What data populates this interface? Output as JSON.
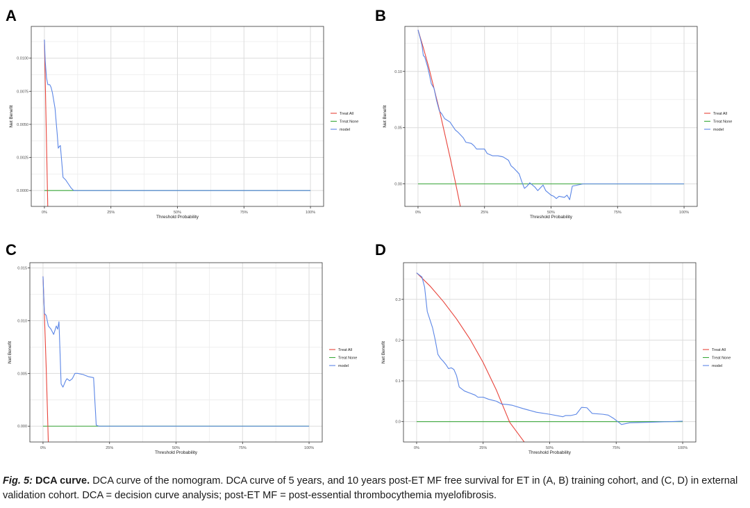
{
  "figure": {
    "panels": [
      {
        "letter": "A",
        "y_ticks": [
          "0.0100",
          "0.0075",
          "0.0050",
          "0.0025",
          "0.0000"
        ],
        "x_ticks": [
          "0%",
          "25%",
          "50%",
          "75%",
          "100%"
        ]
      },
      {
        "letter": "B",
        "y_ticks": [
          "0.10",
          "0.05",
          "0.00"
        ],
        "x_ticks": [
          "0%",
          "25%",
          "50%",
          "75%",
          "100%"
        ]
      },
      {
        "letter": "C",
        "y_ticks": [
          "0.015",
          "0.010",
          "0.005",
          "0.000"
        ],
        "x_ticks": [
          "0%",
          "25%",
          "50%",
          "75%",
          "100%"
        ]
      },
      {
        "letter": "D",
        "y_ticks": [
          "0.3",
          "0.2",
          "0.1",
          "0.0"
        ],
        "x_ticks": [
          "0%",
          "25%",
          "50%",
          "75%",
          "100%"
        ]
      }
    ]
  },
  "caption": {
    "label": "Fig. 5:",
    "title": "DCA curve.",
    "text": "DCA curve of the nomogram. DCA curve of 5 years, and 10 years post-ET MF free survival for ET in (A, B) training cohort, and (C, D) in external validation cohort. DCA = decision curve analysis; post-ET MF = post-essential thrombocythemia myelofibrosis."
  },
  "colors": {
    "treat_all": "#e8433a",
    "treat_none": "#3aa83a",
    "model": "#5b86e6",
    "grid": "#dcdcdc",
    "frame": "#333333"
  },
  "chart_data": [
    {
      "panel": "A",
      "type": "line",
      "xlabel": "Threshold Probability",
      "ylabel": "Net Benefit",
      "xlim": [
        0,
        1
      ],
      "ylim": [
        -0.0012,
        0.0124
      ],
      "x_ticks": [
        0,
        0.25,
        0.5,
        0.75,
        1
      ],
      "x_tick_labels": [
        "0%",
        "25%",
        "50%",
        "75%",
        "100%"
      ],
      "y_ticks": [
        0,
        0.0025,
        0.005,
        0.0075,
        0.01
      ],
      "y_tick_labels": [
        "0.0000",
        "0.0025",
        "0.0050",
        "0.0075",
        "0.0100"
      ],
      "legend": [
        "Treat All",
        "Treat None",
        "model"
      ],
      "legend_position": "right",
      "series": [
        {
          "name": "Treat All",
          "x": [
            0,
            0.0015,
            0.003,
            0.005,
            0.007,
            0.009,
            0.011,
            0.013
          ],
          "y": [
            0.0114,
            0.0099,
            0.0085,
            0.0065,
            0.0045,
            0.0025,
            0.0004,
            -0.0016
          ]
        },
        {
          "name": "Treat None",
          "x": [
            0,
            1
          ],
          "y": [
            0,
            0
          ]
        },
        {
          "name": "model",
          "x": [
            0,
            0.003,
            0.008,
            0.013,
            0.02,
            0.025,
            0.03,
            0.04,
            0.045,
            0.048,
            0.052,
            0.055,
            0.06,
            0.065,
            0.07,
            0.08,
            0.09,
            0.1,
            0.11,
            0.12,
            1.0
          ],
          "y": [
            0.0114,
            0.0098,
            0.0085,
            0.008,
            0.008,
            0.0078,
            0.0074,
            0.0062,
            0.005,
            0.0043,
            0.0032,
            0.0033,
            0.0034,
            0.0022,
            0.001,
            0.0008,
            0.0005,
            0.0002,
            0.0,
            0.0,
            0.0
          ]
        }
      ]
    },
    {
      "panel": "B",
      "type": "line",
      "xlabel": "Threshold Probability",
      "ylabel": "Net Benefit",
      "xlim": [
        0,
        1
      ],
      "ylim": [
        -0.02,
        0.14
      ],
      "x_ticks": [
        0,
        0.25,
        0.5,
        0.75,
        1
      ],
      "x_tick_labels": [
        "0%",
        "25%",
        "50%",
        "75%",
        "100%"
      ],
      "y_ticks": [
        0,
        0.05,
        0.1
      ],
      "y_tick_labels": [
        "0.00",
        "0.05",
        "0.10"
      ],
      "legend": [
        "Treat All",
        "Treat None",
        "model"
      ],
      "legend_position": "right",
      "series": [
        {
          "name": "Treat All",
          "x": [
            0,
            0.02,
            0.04,
            0.06,
            0.08,
            0.1,
            0.12,
            0.14,
            0.16
          ],
          "y": [
            0.137,
            0.121,
            0.104,
            0.085,
            0.066,
            0.045,
            0.024,
            0.002,
            -0.021
          ]
        },
        {
          "name": "Treat None",
          "x": [
            0,
            1
          ],
          "y": [
            0,
            0
          ]
        },
        {
          "name": "model",
          "x": [
            0,
            0.01,
            0.015,
            0.02,
            0.025,
            0.035,
            0.04,
            0.05,
            0.06,
            0.07,
            0.08,
            0.09,
            0.1,
            0.12,
            0.14,
            0.15,
            0.17,
            0.18,
            0.2,
            0.21,
            0.22,
            0.25,
            0.26,
            0.28,
            0.3,
            0.32,
            0.34,
            0.35,
            0.36,
            0.38,
            0.39,
            0.4,
            0.41,
            0.42,
            0.44,
            0.45,
            0.47,
            0.48,
            0.5,
            0.51,
            0.52,
            0.53,
            0.55,
            0.56,
            0.57,
            0.58,
            0.6,
            0.62,
            1.0
          ],
          "y": [
            0.137,
            0.128,
            0.123,
            0.114,
            0.113,
            0.105,
            0.1,
            0.089,
            0.085,
            0.074,
            0.065,
            0.062,
            0.058,
            0.055,
            0.048,
            0.046,
            0.041,
            0.037,
            0.036,
            0.034,
            0.031,
            0.031,
            0.027,
            0.025,
            0.025,
            0.024,
            0.021,
            0.016,
            0.014,
            0.009,
            0.002,
            -0.004,
            -0.002,
            0.001,
            -0.003,
            -0.006,
            -0.001,
            -0.006,
            -0.01,
            -0.011,
            -0.013,
            -0.011,
            -0.012,
            -0.01,
            -0.014,
            -0.002,
            -0.001,
            0.0,
            0.0
          ]
        }
      ]
    },
    {
      "panel": "C",
      "type": "line",
      "xlabel": "Threshold Probability",
      "ylabel": "Net Benefit",
      "xlim": [
        0,
        1
      ],
      "ylim": [
        -0.0015,
        0.0155
      ],
      "x_ticks": [
        0,
        0.25,
        0.5,
        0.75,
        1
      ],
      "x_tick_labels": [
        "0%",
        "25%",
        "50%",
        "75%",
        "100%"
      ],
      "y_ticks": [
        0,
        0.005,
        0.01,
        0.015
      ],
      "y_tick_labels": [
        "0.000",
        "0.005",
        "0.010",
        "0.015"
      ],
      "legend": [
        "Treat All",
        "Treat None",
        "model"
      ],
      "legend_position": "right",
      "series": [
        {
          "name": "Treat All",
          "x": [
            0,
            0.004,
            0.008,
            0.012,
            0.016,
            0.02
          ],
          "y": [
            0.0142,
            0.0115,
            0.0085,
            0.0055,
            0.002,
            -0.0016
          ]
        },
        {
          "name": "Treat None",
          "x": [
            0,
            1
          ],
          "y": [
            0,
            0
          ]
        },
        {
          "name": "model",
          "x": [
            0,
            0.005,
            0.012,
            0.02,
            0.03,
            0.04,
            0.05,
            0.055,
            0.06,
            0.068,
            0.075,
            0.08,
            0.085,
            0.09,
            0.1,
            0.11,
            0.12,
            0.13,
            0.15,
            0.17,
            0.19,
            0.2,
            0.21,
            1.0
          ],
          "y": [
            0.0142,
            0.0107,
            0.0105,
            0.0095,
            0.0092,
            0.0087,
            0.0095,
            0.0092,
            0.0099,
            0.004,
            0.0037,
            0.004,
            0.0043,
            0.0045,
            0.0043,
            0.0045,
            0.005,
            0.005,
            0.0049,
            0.0047,
            0.0046,
            0.0001,
            0.0,
            0.0
          ]
        }
      ]
    },
    {
      "panel": "D",
      "type": "line",
      "xlabel": "Threshold Probability",
      "ylabel": "Net Benefit",
      "xlim": [
        0,
        1
      ],
      "ylim": [
        -0.05,
        0.39
      ],
      "x_ticks": [
        0,
        0.25,
        0.5,
        0.75,
        1
      ],
      "x_tick_labels": [
        "0%",
        "25%",
        "50%",
        "75%",
        "100%"
      ],
      "y_ticks": [
        0,
        0.1,
        0.2,
        0.3
      ],
      "y_tick_labels": [
        "0.0",
        "0.1",
        "0.2",
        "0.3"
      ],
      "legend": [
        "Treat All",
        "Treat None",
        "model"
      ],
      "legend_position": "right",
      "series": [
        {
          "name": "Treat All",
          "x": [
            0,
            0.05,
            0.1,
            0.15,
            0.2,
            0.25,
            0.3,
            0.35,
            0.4,
            0.41
          ],
          "y": [
            0.365,
            0.333,
            0.295,
            0.252,
            0.203,
            0.145,
            0.077,
            -0.002,
            -0.046,
            -0.055
          ]
        },
        {
          "name": "Treat None",
          "x": [
            0,
            1
          ],
          "y": [
            0,
            0
          ]
        },
        {
          "name": "model",
          "x": [
            0,
            0.02,
            0.03,
            0.04,
            0.05,
            0.06,
            0.07,
            0.08,
            0.09,
            0.1,
            0.11,
            0.12,
            0.13,
            0.14,
            0.15,
            0.16,
            0.17,
            0.18,
            0.2,
            0.22,
            0.23,
            0.25,
            0.27,
            0.3,
            0.32,
            0.34,
            0.36,
            0.4,
            0.45,
            0.5,
            0.55,
            0.56,
            0.58,
            0.6,
            0.62,
            0.64,
            0.66,
            0.7,
            0.72,
            0.74,
            0.77,
            0.8,
            0.9,
            1.0
          ],
          "y": [
            0.365,
            0.355,
            0.33,
            0.27,
            0.25,
            0.23,
            0.2,
            0.165,
            0.155,
            0.148,
            0.14,
            0.13,
            0.132,
            0.128,
            0.113,
            0.085,
            0.08,
            0.075,
            0.07,
            0.065,
            0.06,
            0.06,
            0.055,
            0.05,
            0.043,
            0.042,
            0.04,
            0.032,
            0.023,
            0.018,
            0.012,
            0.015,
            0.015,
            0.018,
            0.035,
            0.034,
            0.02,
            0.018,
            0.016,
            0.008,
            -0.007,
            -0.003,
            -0.001,
            0.001
          ]
        }
      ]
    }
  ]
}
